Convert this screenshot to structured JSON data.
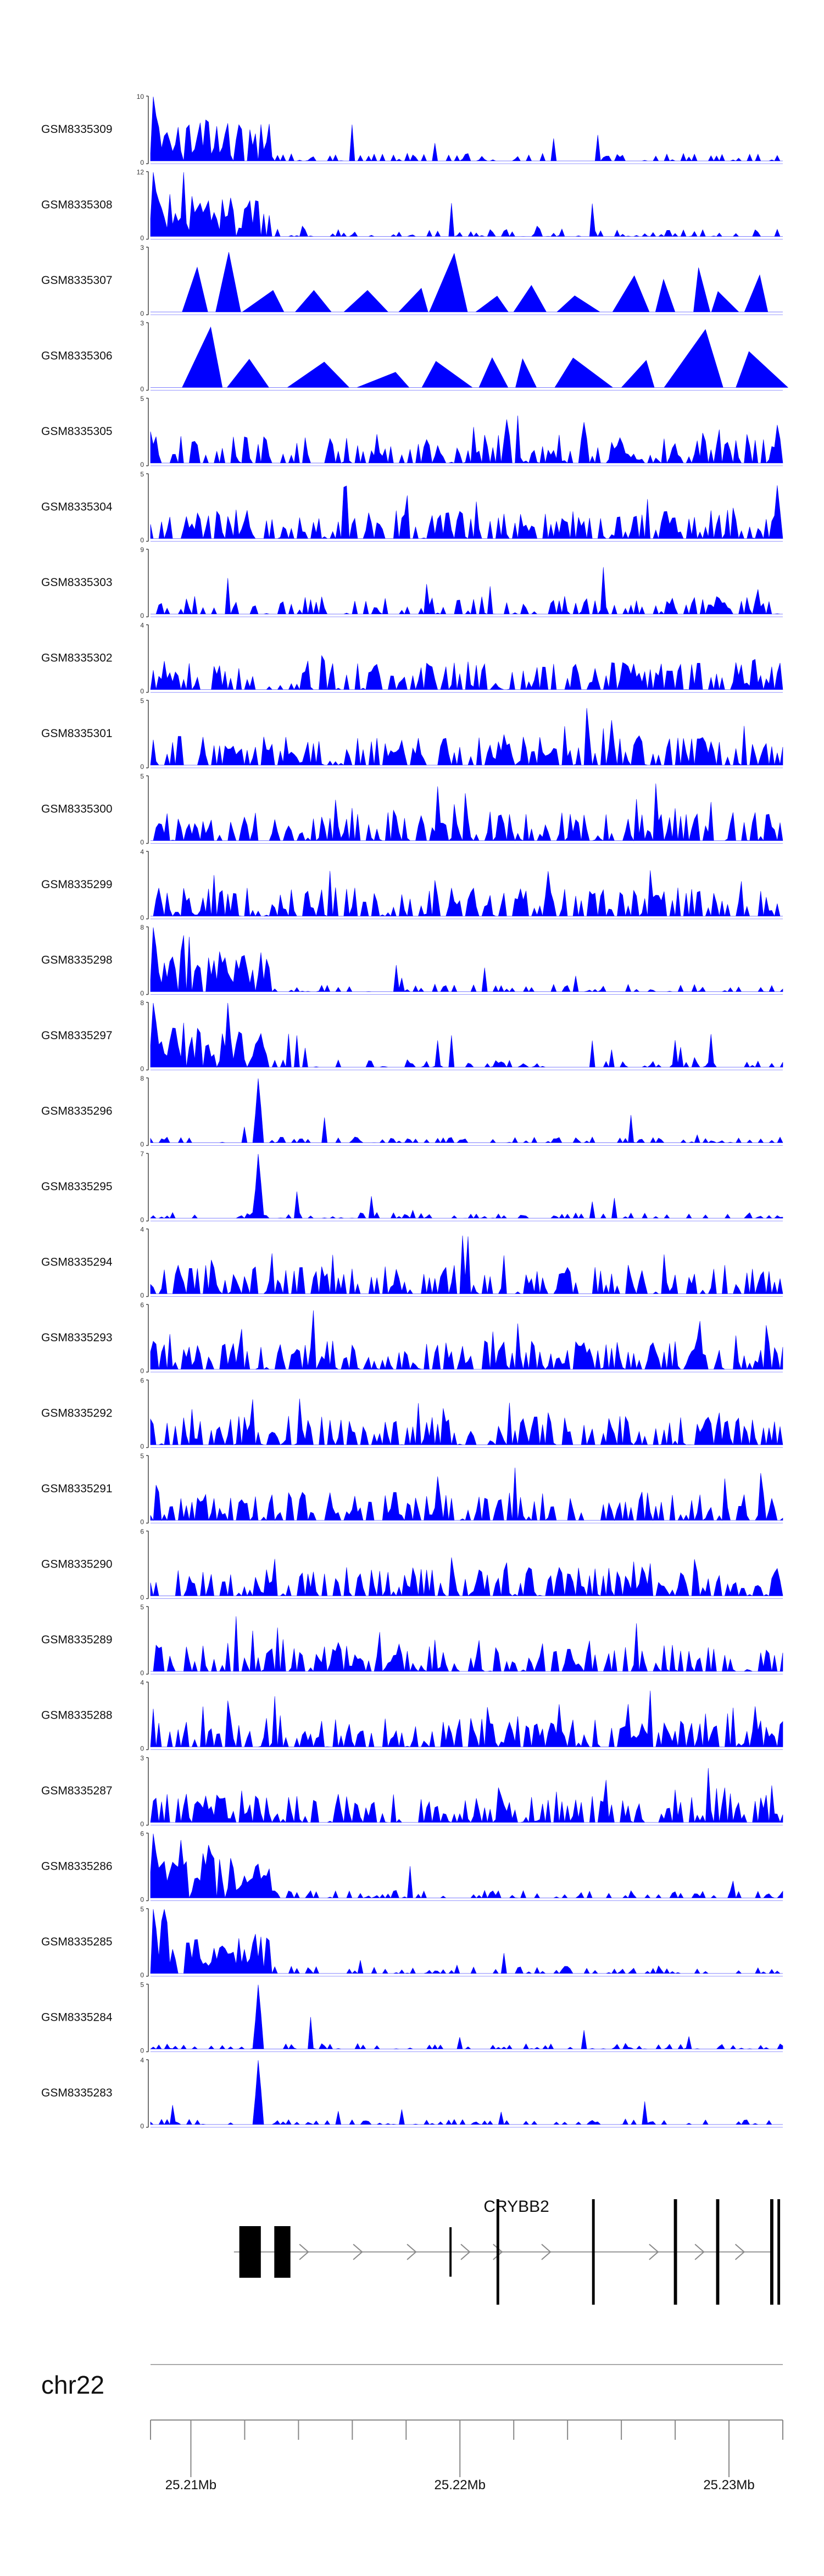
{
  "chart_data": {
    "type": "area",
    "series_color": "#0000ff",
    "tracks": [
      {
        "name": "GSM8335309",
        "ymax": "10",
        "ymin": "0",
        "profile": "early"
      },
      {
        "name": "GSM8335308",
        "ymax": "12",
        "ymin": "0",
        "profile": "early"
      },
      {
        "name": "GSM8335307",
        "ymax": "3",
        "ymin": "0",
        "profile": "sparse"
      },
      {
        "name": "GSM8335306",
        "ymax": "3",
        "ymin": "0",
        "profile": "sparse-big"
      },
      {
        "name": "GSM8335305",
        "ymax": "5",
        "ymin": "0",
        "profile": "uniform"
      },
      {
        "name": "GSM8335304",
        "ymax": "5",
        "ymin": "0",
        "profile": "uniform"
      },
      {
        "name": "GSM8335303",
        "ymax": "9",
        "ymin": "0",
        "profile": "moderate"
      },
      {
        "name": "GSM8335302",
        "ymax": "4",
        "ymin": "0",
        "profile": "uniform"
      },
      {
        "name": "GSM8335301",
        "ymax": "5",
        "ymin": "0",
        "profile": "uniform"
      },
      {
        "name": "GSM8335300",
        "ymax": "5",
        "ymin": "0",
        "profile": "uniform"
      },
      {
        "name": "GSM8335299",
        "ymax": "4",
        "ymin": "0",
        "profile": "uniform"
      },
      {
        "name": "GSM8335298",
        "ymax": "8",
        "ymin": "0",
        "profile": "early"
      },
      {
        "name": "GSM8335297",
        "ymax": "8",
        "ymin": "0",
        "profile": "early"
      },
      {
        "name": "GSM8335296",
        "ymax": "8",
        "ymin": "0",
        "profile": "spike"
      },
      {
        "name": "GSM8335295",
        "ymax": "7",
        "ymin": "0",
        "profile": "spike"
      },
      {
        "name": "GSM8335294",
        "ymax": "4",
        "ymin": "0",
        "profile": "uniform"
      },
      {
        "name": "GSM8335293",
        "ymax": "6",
        "ymin": "0",
        "profile": "uniform"
      },
      {
        "name": "GSM8335292",
        "ymax": "6",
        "ymin": "0",
        "profile": "uniform"
      },
      {
        "name": "GSM8335291",
        "ymax": "5",
        "ymin": "0",
        "profile": "uniform"
      },
      {
        "name": "GSM8335290",
        "ymax": "6",
        "ymin": "0",
        "profile": "uniform"
      },
      {
        "name": "GSM8335289",
        "ymax": "5",
        "ymin": "0",
        "profile": "uniform"
      },
      {
        "name": "GSM8335288",
        "ymax": "4",
        "ymin": "0",
        "profile": "uniform"
      },
      {
        "name": "GSM8335287",
        "ymax": "3",
        "ymin": "0",
        "profile": "uniform"
      },
      {
        "name": "GSM8335286",
        "ymax": "6",
        "ymin": "0",
        "profile": "early"
      },
      {
        "name": "GSM8335285",
        "ymax": "5",
        "ymin": "0",
        "profile": "early"
      },
      {
        "name": "GSM8335284",
        "ymax": "5",
        "ymin": "0",
        "profile": "spike"
      },
      {
        "name": "GSM8335283",
        "ymax": "4",
        "ymin": "0",
        "profile": "spike"
      }
    ],
    "gene": {
      "name": "CRYBB2",
      "line_start": 25.2116,
      "line_end": 25.2316,
      "exons": [
        {
          "start": 25.2118,
          "end": 25.2126
        },
        {
          "start": 25.2131,
          "end": 25.2137
        },
        {
          "start": 25.21961,
          "end": 25.21969
        },
        {
          "start": 25.22136,
          "end": 25.22146
        },
        {
          "start": 25.22491,
          "end": 25.22501
        },
        {
          "start": 25.22795,
          "end": 25.22807
        },
        {
          "start": 25.22952,
          "end": 25.22964
        },
        {
          "start": 25.23153,
          "end": 25.23165
        },
        {
          "start": 25.2318,
          "end": 25.2319
        }
      ],
      "strand_arrows": [
        25.2142,
        25.2162,
        25.2182,
        25.2202,
        25.2214,
        25.2232,
        25.2272,
        25.2289,
        25.2304
      ]
    },
    "chromosome": "chr22",
    "x_range": [
      25.2085,
      25.232
    ],
    "ticks": [
      25.2085,
      25.21,
      25.212,
      25.214,
      25.216,
      25.218,
      25.22,
      25.222,
      25.224,
      25.226,
      25.228,
      25.23,
      25.232
    ],
    "tick_labels": [
      {
        "value": 25.21,
        "label": "25.21Mb"
      },
      {
        "value": 25.22,
        "label": "25.22Mb"
      },
      {
        "value": 25.23,
        "label": "25.23Mb"
      }
    ]
  }
}
